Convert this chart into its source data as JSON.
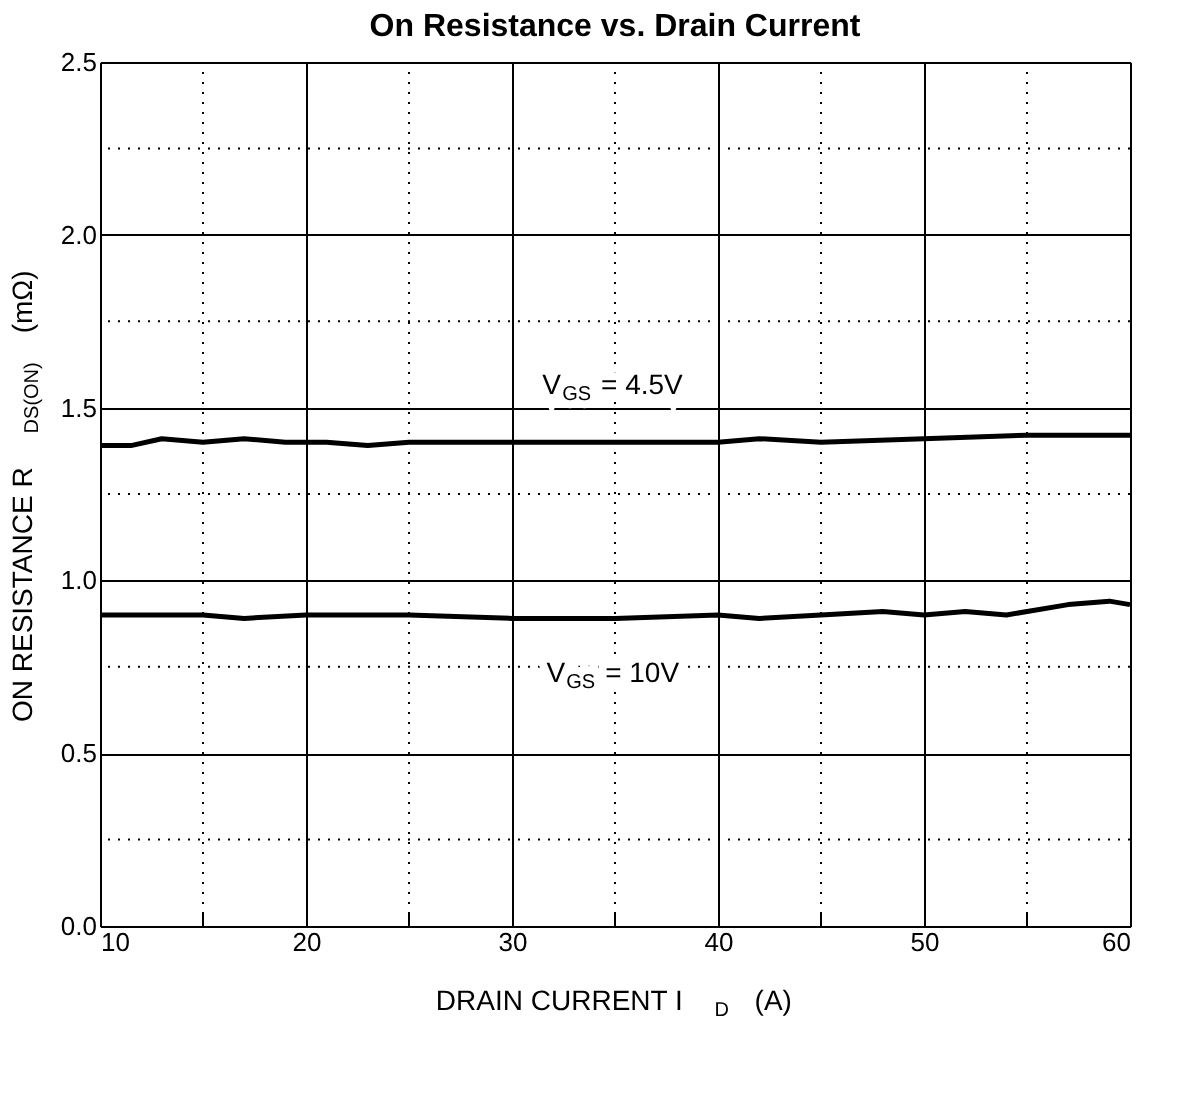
{
  "chart_data": {
    "type": "line",
    "title": "On Resistance vs. Drain Current",
    "xlabel": "DRAIN CURRENT   I$_{D}$   (A)",
    "ylabel": "ON RESISTANCE   R$_{DS(ON)}$   (mΩ)",
    "xlim": [
      10,
      60
    ],
    "xticks": [
      10,
      20,
      30,
      40,
      50,
      60
    ],
    "ylim": [
      0,
      2.5
    ],
    "yticks": [
      {
        "value": 0,
        "label": "0.0"
      },
      {
        "value": 0.5,
        "label": "0.5"
      },
      {
        "value": 1,
        "label": "1.0"
      },
      {
        "value": 1.5,
        "label": "1.5"
      },
      {
        "value": 2,
        "label": "2.0"
      },
      {
        "value": 2.5,
        "label": "2.5"
      }
    ],
    "grid": true,
    "legend": false,
    "marker": "none",
    "line_style": "solid",
    "series": [
      {
        "name": "V$_{GS}$ = 4.5V",
        "color": "#000000",
        "x": [
          10,
          11.5,
          13,
          15,
          17,
          19,
          21,
          23,
          25,
          30,
          35,
          38,
          40,
          42,
          45,
          50,
          55,
          60
        ],
        "values": [
          1.39,
          1.39,
          1.41,
          1.4,
          1.41,
          1.4,
          1.4,
          1.39,
          1.4,
          1.4,
          1.4,
          1.4,
          1.4,
          1.41,
          1.4,
          1.41,
          1.42,
          1.42
        ]
      },
      {
        "name": "V$_{GS}$ = 10V",
        "color": "#000000",
        "x": [
          10,
          15,
          17,
          20,
          25,
          30,
          35,
          40,
          42,
          45,
          48,
          50,
          52,
          54,
          57,
          59,
          60
        ],
        "values": [
          0.9,
          0.9,
          0.89,
          0.9,
          0.9,
          0.89,
          0.89,
          0.9,
          0.89,
          0.9,
          0.91,
          0.9,
          0.91,
          0.9,
          0.93,
          0.94,
          0.93
        ]
      }
    ]
  }
}
